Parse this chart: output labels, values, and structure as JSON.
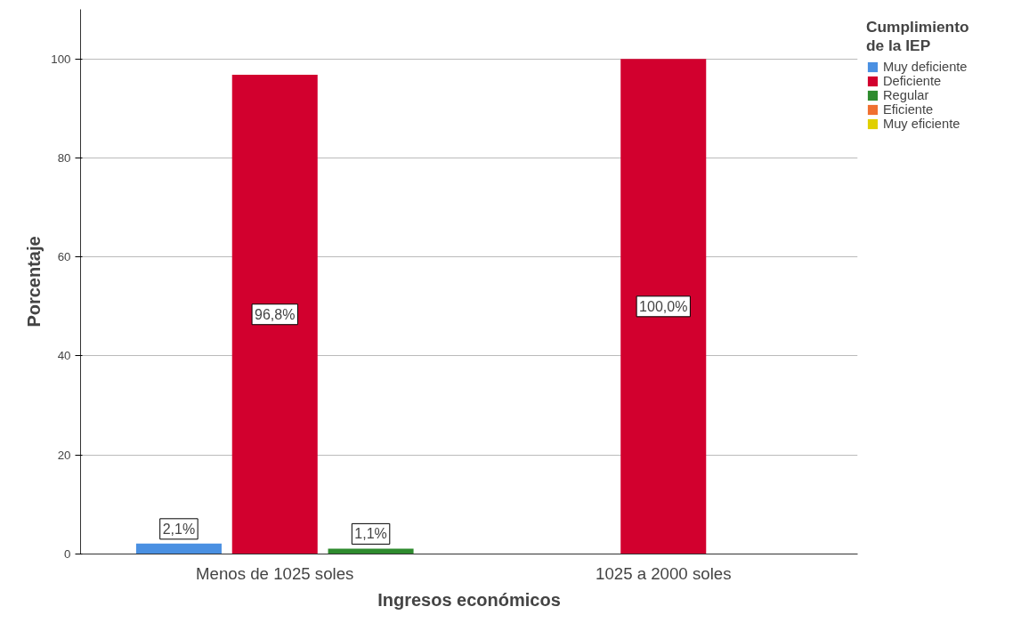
{
  "chart_data": {
    "type": "bar",
    "xlabel": "Ingresos económicos",
    "ylabel": "Porcentaje",
    "legend_title": "Cumplimiento de la IEP",
    "categories": [
      "Menos de 1025 soles",
      "1025 a 2000 soles"
    ],
    "series": [
      {
        "name": "Muy deficiente",
        "color": "#4a90e2",
        "values": [
          2.1,
          null
        ]
      },
      {
        "name": "Deficiente",
        "color": "#d2002e",
        "values": [
          96.8,
          100.0
        ]
      },
      {
        "name": "Regular",
        "color": "#2e8b2e",
        "values": [
          1.1,
          null
        ]
      },
      {
        "name": "Eficiente",
        "color": "#f07030",
        "values": [
          null,
          null
        ]
      },
      {
        "name": "Muy eficiente",
        "color": "#e0d000",
        "values": [
          null,
          null
        ]
      }
    ],
    "value_labels": [
      [
        "2,1%",
        null
      ],
      [
        "96,8%",
        "100,0%"
      ],
      [
        "1,1%",
        null
      ],
      [
        null,
        null
      ],
      [
        null,
        null
      ]
    ],
    "ylim": [
      0,
      110
    ],
    "yticks": [
      0,
      20,
      40,
      60,
      80,
      100
    ],
    "grid": "y",
    "legend": "right"
  }
}
